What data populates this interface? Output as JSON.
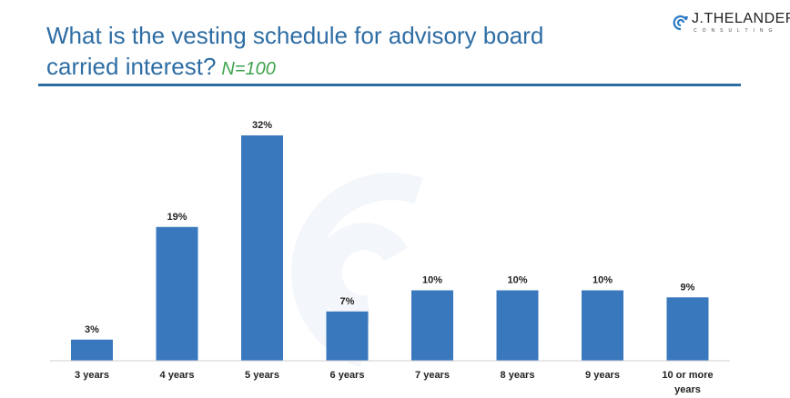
{
  "header": {
    "title": "What is the vesting schedule for advisory board carried interest?",
    "sample": "N=100"
  },
  "logo": {
    "name": "J.THELANDER",
    "sub": "CONSULTING"
  },
  "colors": {
    "bar": "#3a78bd",
    "title": "#2e6da4",
    "sample": "#3fa34d"
  },
  "chart_data": {
    "type": "bar",
    "categories": [
      [
        "3 years"
      ],
      [
        "4 years"
      ],
      [
        "5 years"
      ],
      [
        "6 years"
      ],
      [
        "7 years"
      ],
      [
        "8 years"
      ],
      [
        "9 years"
      ],
      [
        "10 or more",
        "years"
      ]
    ],
    "values": [
      3,
      19,
      32,
      7,
      10,
      10,
      10,
      9
    ],
    "data_labels": [
      "3%",
      "19%",
      "32%",
      "7%",
      "10%",
      "10%",
      "10%",
      "9%"
    ],
    "unit": "%",
    "ylim": [
      0,
      32
    ],
    "grid": false,
    "legend": "none"
  }
}
